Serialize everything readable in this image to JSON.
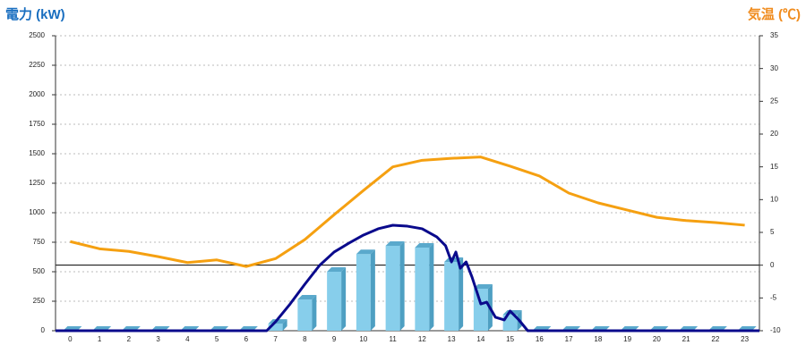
{
  "chart_data": {
    "type": "bar-line",
    "y_label": "電力 (kW)",
    "y2_label": "気温 (℃)",
    "categories": [
      "0",
      "1",
      "2",
      "3",
      "4",
      "5",
      "6",
      "7",
      "8",
      "9",
      "10",
      "11",
      "12",
      "13",
      "14",
      "15",
      "16",
      "17",
      "18",
      "19",
      "20",
      "21",
      "22",
      "23"
    ],
    "xlim": [
      -0.5,
      23.5
    ],
    "ylim": [
      0,
      2500
    ],
    "yticks": [
      0,
      250,
      500,
      750,
      1000,
      1250,
      1500,
      1750,
      2000,
      2250,
      2500
    ],
    "y2lim": [
      -10,
      35
    ],
    "y2ticks": [
      -10,
      -5,
      0,
      5,
      10,
      15,
      20,
      25,
      30,
      35
    ],
    "grid": true,
    "y2_zero_line": true,
    "series": [
      {
        "type": "bar3d",
        "color": "#87ceeb",
        "values": [
          0,
          0,
          0,
          0,
          0,
          0,
          0,
          60,
          265,
          500,
          650,
          720,
          705,
          583,
          356,
          136,
          0,
          0,
          0,
          0,
          0,
          0,
          0,
          0
        ]
      },
      {
        "type": "line",
        "axis": "y2",
        "color": "#f5a011",
        "values": [
          3.6,
          2.5,
          2.1,
          1.3,
          0.4,
          0.8,
          -0.2,
          1,
          3.9,
          7.7,
          11.4,
          15,
          16,
          16.3,
          16.5,
          15.1,
          13.6,
          11,
          9.5,
          8.4,
          7.3,
          6.8,
          6.5,
          6.1
        ]
      },
      {
        "type": "line",
        "color": "#0a0a8c",
        "x": [
          -0.5,
          6.7,
          7,
          7.5,
          8,
          8.5,
          9,
          9.5,
          10,
          10.5,
          11,
          11.5,
          12,
          12.5,
          12.8,
          13,
          13.15,
          13.3,
          13.5,
          13.7,
          14,
          14.2,
          14.5,
          14.8,
          15,
          15.3,
          15.6,
          23.5
        ],
        "values": [
          0,
          0,
          75,
          227,
          394,
          553,
          667,
          742,
          811,
          864,
          894,
          886,
          864,
          795,
          720,
          583,
          667,
          530,
          583,
          455,
          227,
          242,
          114,
          91,
          167,
          91,
          0,
          0
        ]
      }
    ]
  }
}
